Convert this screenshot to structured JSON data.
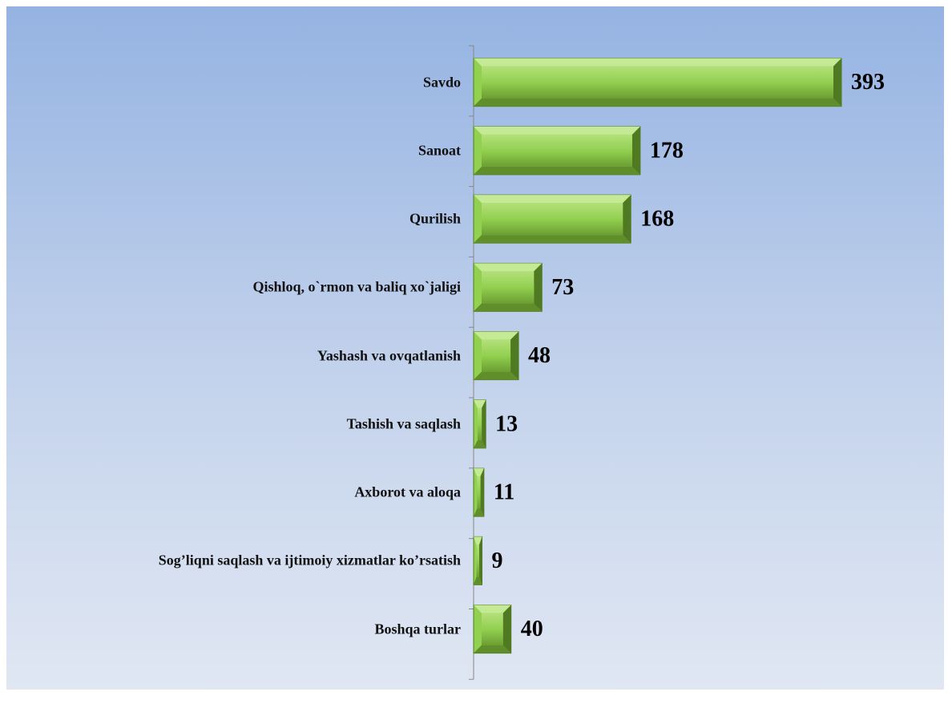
{
  "chart_data": {
    "type": "hbar",
    "categories": [
      "Savdo",
      "Sanoat",
      "Qurilish",
      "Qishloq, o`rmon va baliq xo`jaligi",
      "Yashash va ovqatlanish",
      "Tashish va saqlash",
      "Axborot va aloqa",
      "Sog’liqni saqlash va ijtimoiy xizmatlar ko’rsatish",
      "Boshqa  turlar"
    ],
    "values": [
      393,
      178,
      168,
      73,
      48,
      13,
      11,
      9,
      40
    ],
    "color": "#92d050"
  }
}
